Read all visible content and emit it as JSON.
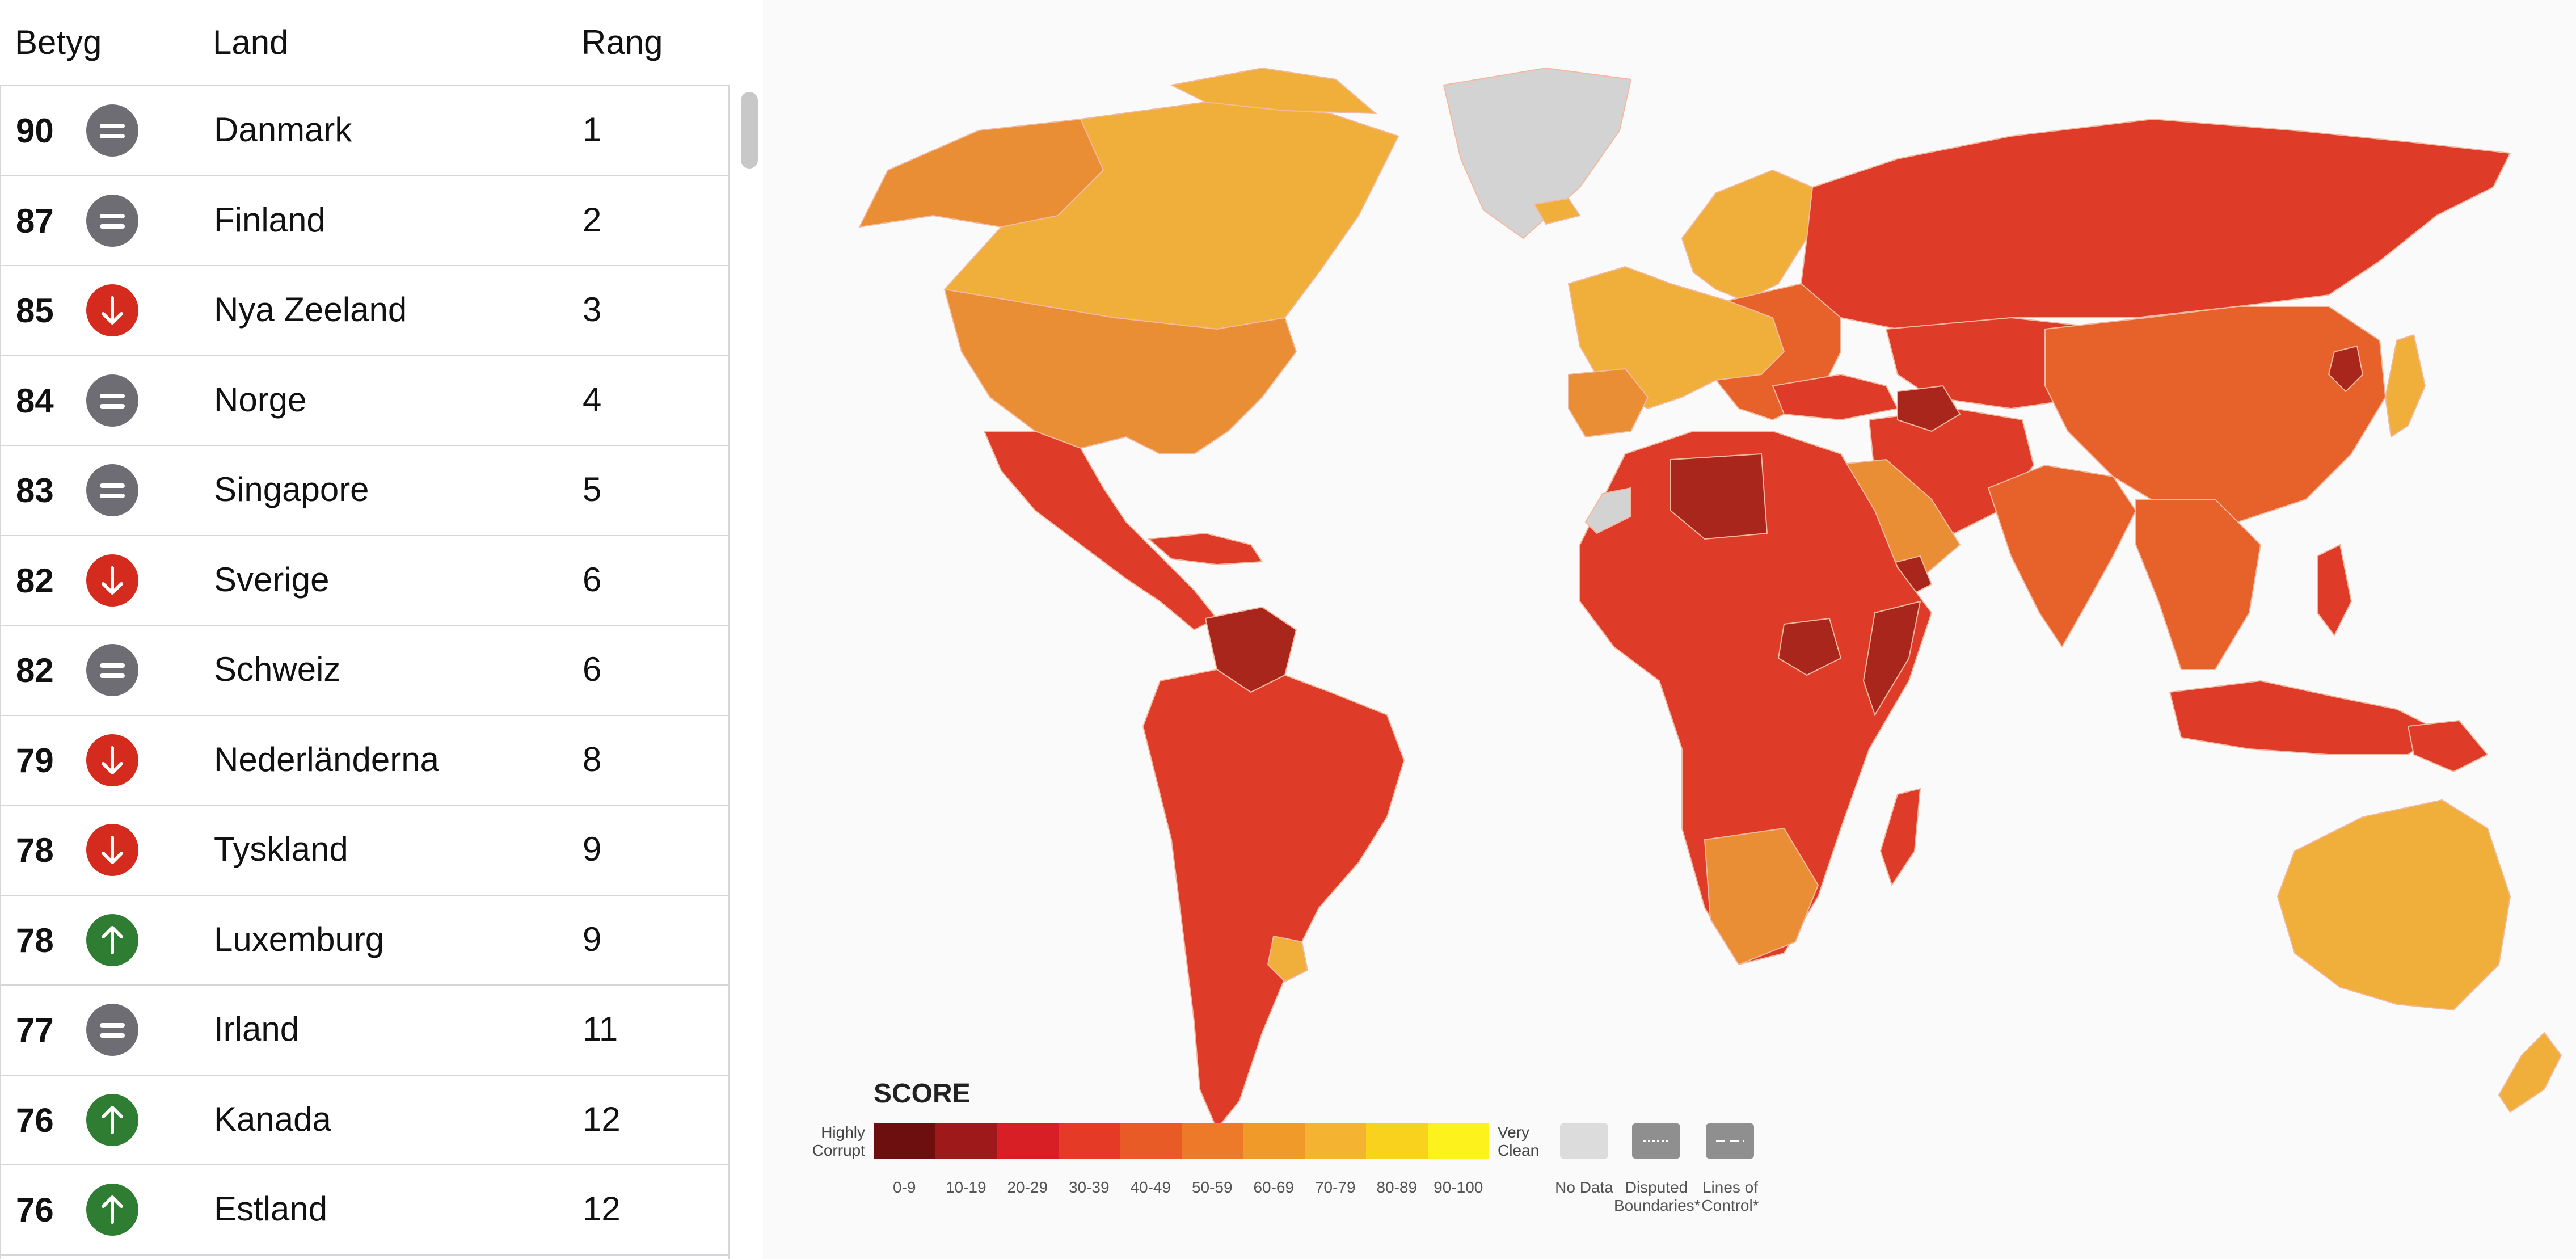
{
  "table": {
    "headers": {
      "score": "Betyg",
      "country": "Land",
      "rank": "Rang"
    },
    "rows": [
      {
        "score": "90",
        "trend": "equal-icon",
        "country": "Danmark",
        "rank": "1"
      },
      {
        "score": "87",
        "trend": "equal-icon",
        "country": "Finland",
        "rank": "2"
      },
      {
        "score": "85",
        "trend": "arrow-down-icon",
        "country": "Nya Zeeland",
        "rank": "3"
      },
      {
        "score": "84",
        "trend": "equal-icon",
        "country": "Norge",
        "rank": "4"
      },
      {
        "score": "83",
        "trend": "equal-icon",
        "country": "Singapore",
        "rank": "5"
      },
      {
        "score": "82",
        "trend": "arrow-down-icon",
        "country": "Sverige",
        "rank": "6"
      },
      {
        "score": "82",
        "trend": "equal-icon",
        "country": "Schweiz",
        "rank": "6"
      },
      {
        "score": "79",
        "trend": "arrow-down-icon",
        "country": "Nederländerna",
        "rank": "8"
      },
      {
        "score": "78",
        "trend": "arrow-down-icon",
        "country": "Tyskland",
        "rank": "9"
      },
      {
        "score": "78",
        "trend": "arrow-up-icon",
        "country": "Luxemburg",
        "rank": "9"
      },
      {
        "score": "77",
        "trend": "equal-icon",
        "country": "Irland",
        "rank": "11"
      },
      {
        "score": "76",
        "trend": "arrow-up-icon",
        "country": "Kanada",
        "rank": "12"
      },
      {
        "score": "76",
        "trend": "arrow-up-icon",
        "country": "Estland",
        "rank": "12"
      }
    ]
  },
  "trend_colors": {
    "equal-icon": "#6d6d73",
    "arrow-down-icon": "#d42b1e",
    "arrow-up-icon": "#2e7d32"
  },
  "legend": {
    "title": "SCORE",
    "low_label_1": "Highly",
    "low_label_2": "Corrupt",
    "high_label_1": "Very",
    "high_label_2": "Clean",
    "ranges": [
      "0-9",
      "10-19",
      "20-29",
      "30-39",
      "40-49",
      "50-59",
      "60-69",
      "70-79",
      "80-89",
      "90-100"
    ],
    "colors": [
      "#6e0f0f",
      "#9e1a1a",
      "#d81f26",
      "#e53a26",
      "#e85a26",
      "#ec7a28",
      "#f09a2a",
      "#f4b331",
      "#f8d21c",
      "#fdf21b"
    ],
    "no_data": "No Data",
    "disputed_1": "Disputed",
    "disputed_2": "Boundaries*",
    "loc_1": "Lines of",
    "loc_2": "Control*"
  },
  "map_colors": {
    "no_data": "#d3d3d3",
    "high": "#f0ae3a",
    "upper_mid": "#ea8e35",
    "mid": "#e7612b",
    "low": "#de3b28",
    "very_low": "#a8261c",
    "ocean": "#fafafa"
  }
}
